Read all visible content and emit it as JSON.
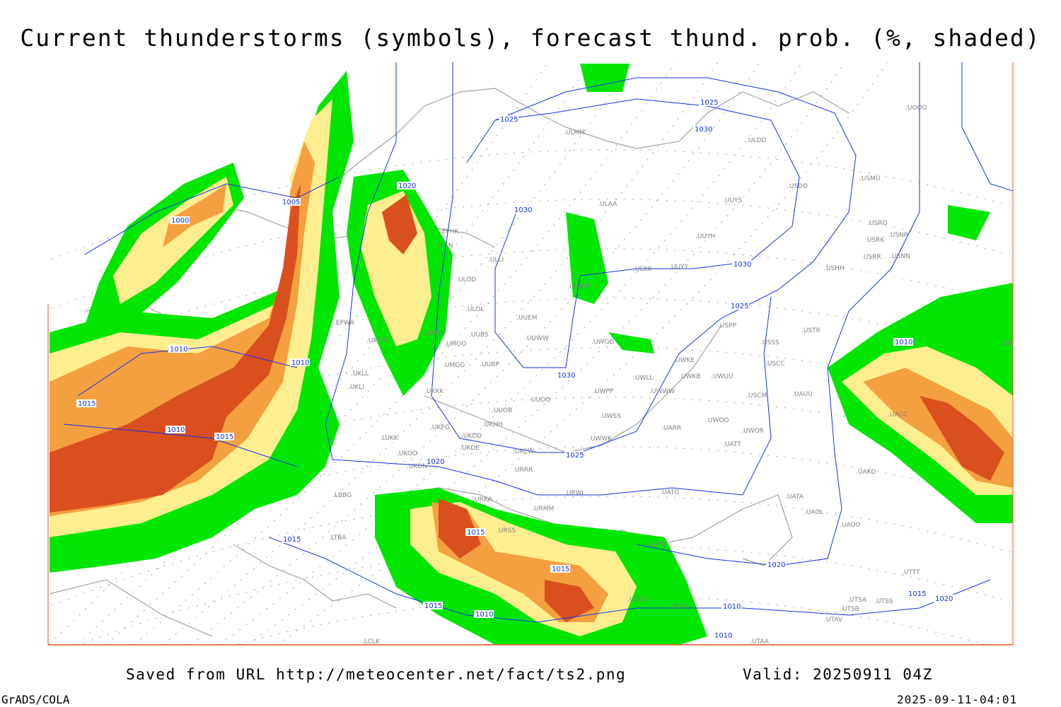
{
  "title": "Current thunderstorms (symbols), forecast thund. prob. (%, shaded)",
  "footer": {
    "saved": "Saved from URL http://meteocenter.net/fact/ts2.png",
    "valid": "Valid: 20250911 04Z",
    "software": "GrADS/COLA",
    "timestamp": "2025-09-11-04:01"
  },
  "colors": {
    "prob_low": "#00e600",
    "prob_mid": "#ffee90",
    "prob_high": "#f5a040",
    "prob_max": "#d9501e",
    "isobar": "#1030f0",
    "coastline": "#a0a0a0",
    "grid": "#a0a0a0"
  },
  "isobar_labels": [
    "1000",
    "1005",
    "1010",
    "1010",
    "1010",
    "1015",
    "1015",
    "1015",
    "1015",
    "1015",
    "1015",
    "1020",
    "1020",
    "1020",
    "1025",
    "1025",
    "1025",
    "1025",
    "1030",
    "1030",
    "1030",
    "1030",
    "1010",
    "1010",
    "1010",
    "1010",
    "1015",
    "1020"
  ],
  "stations": [
    "EFHK",
    "EETN",
    "ULLI",
    "ULOD",
    "ULOL",
    "UUEM",
    "UUWW",
    "UMMS",
    "UMOO",
    "UUBS",
    "UMGG",
    "UUBP",
    "UMBB",
    "EPWA",
    "UKLL",
    "UKLI",
    "UKKK",
    "UUOO",
    "UUOB",
    "UKHH",
    "UKFG",
    "UKDD",
    "UKDE",
    "UKON",
    "UKCW",
    "URRR",
    "LUKK",
    "UKOO",
    "URWI",
    "URKA",
    "URMM",
    "URSS",
    "UUYH",
    "UUYY",
    "ULKK",
    "ULAA",
    "ULWW",
    "UWGG",
    "UWKE",
    "UWKB",
    "UWUU",
    "UWLL",
    "UWWW",
    "UWPP",
    "UWSS",
    "UWWK",
    "UARR",
    "UWOO",
    "UWOR",
    "UATT",
    "USSS",
    "USCC",
    "USCM",
    "UAUU",
    "USTR",
    "USPP",
    "USHH",
    "USRR",
    "USNN",
    "USRK",
    "USRO",
    "USNR",
    "USMU",
    "USDD",
    "ULDD",
    "UUYS",
    "ULMM",
    "UOOO",
    "UATG",
    "UATA",
    "UAOL",
    "UAOO",
    "UAKD",
    "UACC",
    "UNBB",
    "UATE",
    "UTAK",
    "UBBB",
    "UTSA",
    "UTSS",
    "UTAV",
    "UTSB",
    "UTTT",
    "UTAA",
    "LTBA",
    "LBBG",
    "LCLK"
  ]
}
